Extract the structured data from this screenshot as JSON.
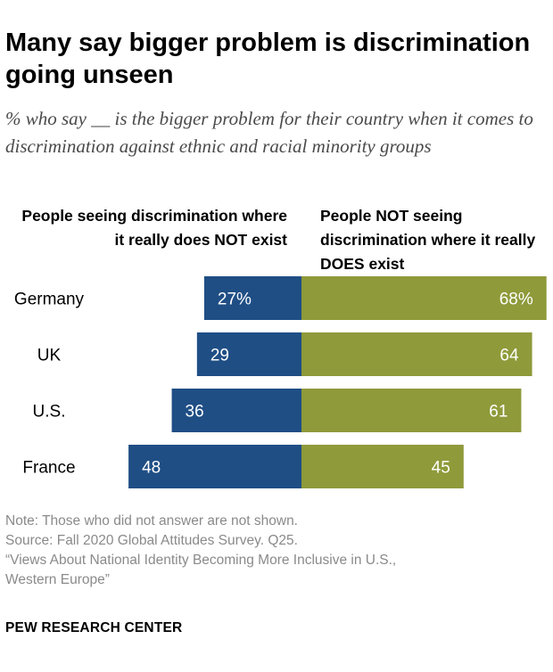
{
  "header": {
    "title": "Many say bigger problem is discrimination going unseen",
    "subtitle": "% who say __ is the bigger problem for their country when it comes to discrimination against ethnic and racial minority groups"
  },
  "columns": {
    "left_label": "People seeing discrimination where it really does NOT exist",
    "right_label": "People NOT seeing discrimination where it really DOES exist"
  },
  "chart_data": {
    "type": "bar",
    "orientation": "horizontal-diverging",
    "categories": [
      "Germany",
      "UK",
      "U.S.",
      "France"
    ],
    "series": [
      {
        "name": "People seeing discrimination where it really does NOT exist",
        "values": [
          27,
          29,
          36,
          48
        ],
        "labels": [
          "27%",
          "29",
          "36",
          "48"
        ],
        "color": "#1f4e85"
      },
      {
        "name": "People NOT seeing discrimination where it really DOES exist",
        "values": [
          68,
          64,
          61,
          45
        ],
        "labels": [
          "68%",
          "64",
          "61",
          "45"
        ],
        "color": "#8f9a3a"
      }
    ],
    "xlim": [
      0,
      100
    ],
    "grid": false
  },
  "notes": {
    "note": "Note: Those who did not answer are not shown.",
    "source": "Source: Fall 2020 Global Attitudes Survey. Q25.",
    "report_line1": "“Views About National Identity Becoming More Inclusive in U.S.,",
    "report_line2": "Western Europe”"
  },
  "brand": "PEW RESEARCH CENTER"
}
